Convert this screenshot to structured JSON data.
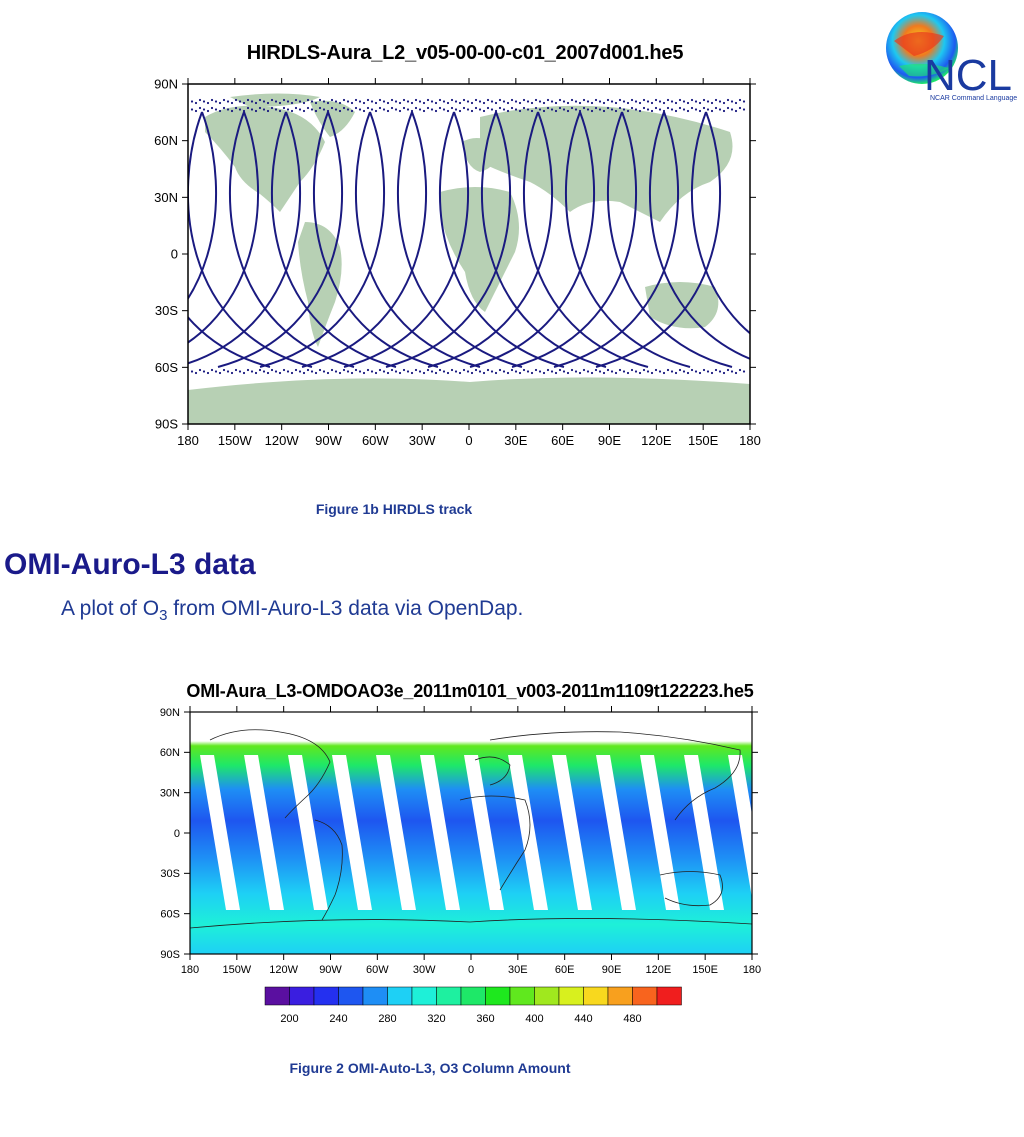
{
  "logo": {
    "text": "NCL",
    "subtitle": "NCAR Command Language"
  },
  "figure1": {
    "title": "HIRDLS-Aura_L2_v05-00-00-c01_2007d001.he5",
    "caption": "Figure 1b HIRDLS track",
    "lat_ticks": [
      "90N",
      "60N",
      "30N",
      "0",
      "30S",
      "60S",
      "90S"
    ],
    "lon_ticks": [
      "180",
      "150W",
      "120W",
      "90W",
      "60W",
      "30W",
      "0",
      "30E",
      "60E",
      "90E",
      "120E",
      "150E",
      "180"
    ]
  },
  "section": {
    "title": "OMI-Auro-L3 data",
    "desc_prefix": "A plot of O",
    "desc_sub": "3",
    "desc_suffix": " from OMI-Auro-L3 data via OpenDap."
  },
  "figure2": {
    "title": "OMI-Aura_L3-OMDOAO3e_2011m0101_v003-2011m1109t122223.he5",
    "caption": "Figure 2  OMI-Auto-L3, O3 Column Amount",
    "lat_ticks": [
      "90N",
      "60N",
      "30N",
      "0",
      "30S",
      "60S",
      "90S"
    ],
    "lon_ticks": [
      "180",
      "150W",
      "120W",
      "90W",
      "60W",
      "30W",
      "0",
      "30E",
      "60E",
      "90E",
      "120E",
      "150E",
      "180"
    ],
    "colorbar_labels": [
      "200",
      "240",
      "280",
      "320",
      "360",
      "400",
      "440",
      "480"
    ],
    "colorbar_colors": [
      "#5a0fa0",
      "#3a1ee0",
      "#2430f0",
      "#1e56f0",
      "#1e8ef5",
      "#1ed0f5",
      "#1ef0d8",
      "#1ef0a0",
      "#1ee868",
      "#1ee81e",
      "#60e81e",
      "#a0e81e",
      "#d8f01e",
      "#f8d81e",
      "#f8a01e",
      "#f8641e",
      "#f01e1e"
    ]
  },
  "colors": {
    "caption": "#1f3a93",
    "heading": "#1a1a8a",
    "land": "#b7d0b4",
    "track": "#1a1a80"
  }
}
